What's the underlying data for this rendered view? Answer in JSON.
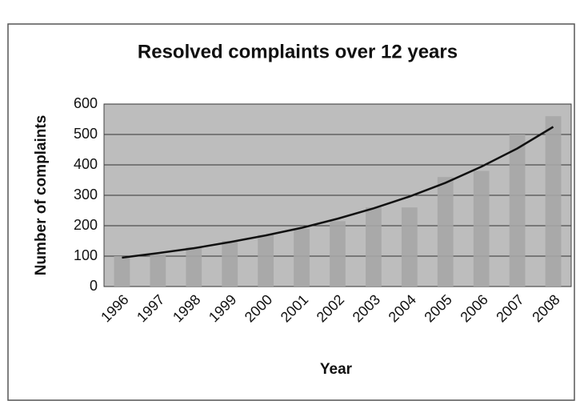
{
  "chart_data": {
    "type": "bar",
    "title": "Resolved complaints over 12 years",
    "xlabel": "Year",
    "ylabel": "Number of complaints",
    "categories": [
      "1996",
      "1997",
      "1998",
      "1999",
      "2000",
      "2001",
      "2002",
      "2003",
      "2004",
      "2005",
      "2006",
      "2007",
      "2008"
    ],
    "values": [
      100,
      105,
      130,
      150,
      170,
      190,
      215,
      260,
      260,
      360,
      380,
      500,
      560
    ],
    "color": "#a6a6a6",
    "trendline": {
      "color": "#111111",
      "values": [
        95,
        110,
        126,
        146,
        168,
        193,
        223,
        257,
        296,
        341,
        394,
        454,
        525
      ]
    },
    "ylim": [
      0,
      600
    ],
    "yticks": [
      0,
      100,
      200,
      300,
      400,
      500,
      600
    ],
    "grid": true
  }
}
